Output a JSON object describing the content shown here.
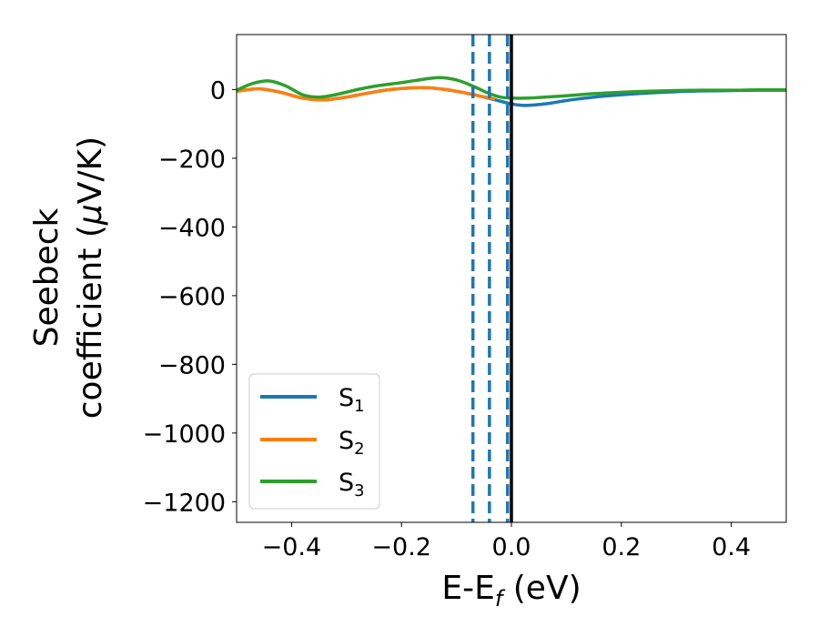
{
  "chart_data": {
    "type": "line",
    "xlabel": {
      "main": "E-E",
      "sub": "f",
      "suffix": " (eV)"
    },
    "ylabel": {
      "line1": "Seebeck",
      "line2_pre": "coefficient  (",
      "line2_mu": "μ",
      "line2_post": "V/K)"
    },
    "xlim": [
      -0.5,
      0.5
    ],
    "ylim": [
      -1260,
      160
    ],
    "xticks": [
      -0.4,
      -0.2,
      0.0,
      0.2,
      0.4
    ],
    "xtick_labels": [
      "−0.4",
      "−0.2",
      "0.0",
      "0.2",
      "0.4"
    ],
    "yticks": [
      0,
      -200,
      -400,
      -600,
      -800,
      -1000,
      -1200
    ],
    "ytick_labels": [
      "0",
      "−200",
      "−400",
      "−600",
      "−800",
      "−1000",
      "−1200"
    ],
    "grid": false,
    "legend_position": "lower-left",
    "series": [
      {
        "name": "S",
        "sub": "1",
        "color": "#1f77b4",
        "x": [
          -0.5,
          -0.46,
          -0.42,
          -0.38,
          -0.34,
          -0.3,
          -0.26,
          -0.22,
          -0.18,
          -0.15,
          -0.12,
          -0.09,
          -0.06,
          -0.03,
          0.0,
          0.02,
          0.04,
          0.07,
          0.1,
          0.15,
          0.2,
          0.25,
          0.3,
          0.35,
          0.4,
          0.45,
          0.5
        ],
        "y": [
          -5,
          2,
          -8,
          -25,
          -30,
          -22,
          -10,
          0,
          5,
          5,
          0,
          -8,
          -18,
          -30,
          -42,
          -46,
          -45,
          -40,
          -32,
          -22,
          -15,
          -10,
          -6,
          -4,
          -3,
          -2,
          -2
        ]
      },
      {
        "name": "S",
        "sub": "2",
        "color": "#ff7f0e",
        "x": [
          -0.5,
          -0.46,
          -0.42,
          -0.38,
          -0.34,
          -0.3,
          -0.26,
          -0.22,
          -0.18,
          -0.15,
          -0.12,
          -0.09,
          -0.06,
          -0.03
        ],
        "y": [
          -5,
          2,
          -8,
          -25,
          -30,
          -22,
          -10,
          0,
          5,
          5,
          0,
          -8,
          -18,
          -28
        ]
      },
      {
        "name": "S",
        "sub": "3",
        "color": "#2ca02c",
        "x": [
          -0.5,
          -0.47,
          -0.44,
          -0.41,
          -0.38,
          -0.35,
          -0.32,
          -0.28,
          -0.24,
          -0.2,
          -0.16,
          -0.13,
          -0.1,
          -0.07,
          -0.04,
          -0.02,
          0.0,
          0.03,
          0.06,
          0.1,
          0.15,
          0.2,
          0.25,
          0.3,
          0.35,
          0.4,
          0.45,
          0.5
        ],
        "y": [
          -2,
          18,
          25,
          10,
          -15,
          -22,
          -15,
          0,
          12,
          20,
          30,
          35,
          28,
          10,
          -12,
          -22,
          -25,
          -25,
          -22,
          -18,
          -12,
          -8,
          -5,
          -3,
          -2,
          -2,
          -1,
          -1
        ]
      }
    ],
    "vlines": [
      {
        "x": -0.07,
        "color": "#1f77b4",
        "style": "dashed"
      },
      {
        "x": -0.04,
        "color": "#1f77b4",
        "style": "dashed"
      },
      {
        "x": -0.007,
        "color": "#1f77b4",
        "style": "dashed"
      },
      {
        "x": 0.0,
        "color": "#000000",
        "style": "solid"
      }
    ]
  }
}
